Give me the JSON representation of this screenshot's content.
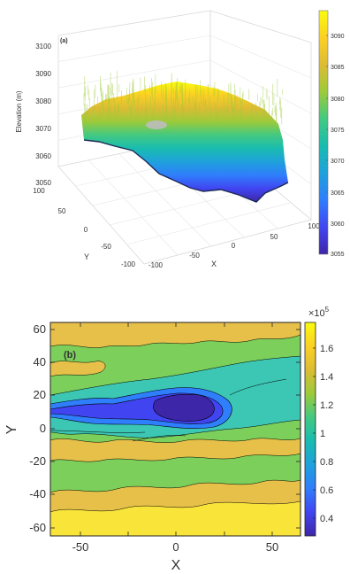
{
  "colors": {
    "parula": [
      "#3e26a8",
      "#4145f1",
      "#2f7efc",
      "#1fa1dc",
      "#19bcb0",
      "#43c981",
      "#9cca3a",
      "#dcbc34",
      "#fbd024",
      "#f9fb0e"
    ]
  },
  "chart_data": [
    {
      "panel": "(a)",
      "type": "surface3d",
      "zlabel": "Elevation (m)",
      "xlabel": "X",
      "ylabel": "Y",
      "x_ticks": [
        "-100",
        "-50",
        "0",
        "50",
        "100"
      ],
      "y_ticks": [
        "-100",
        "-50",
        "0",
        "50",
        "100"
      ],
      "z_ticks": [
        "3050",
        "3060",
        "3070",
        "3080",
        "3090",
        "3100"
      ],
      "zlim": [
        3050,
        3100
      ],
      "colorbar": {
        "ticks": [
          "3055",
          "3060",
          "3065",
          "3070",
          "3075",
          "3080",
          "3085",
          "3090"
        ],
        "range": [
          3053,
          3093
        ]
      },
      "grid": true
    },
    {
      "panel": "(b)",
      "type": "contour",
      "xlabel": "X",
      "ylabel": "Y",
      "x_ticks": [
        "-50",
        "0",
        "50"
      ],
      "y_ticks": [
        "60",
        "40",
        "20",
        "0",
        "-20",
        "-40",
        "-60"
      ],
      "xlim": [
        -65,
        65
      ],
      "ylim": [
        -65,
        65
      ],
      "colorbar": {
        "multiplier": "×10",
        "exponent": "5",
        "ticks": [
          "1.6",
          "1.4",
          "1.2",
          "1",
          "0.8",
          "0.6",
          "0.4"
        ],
        "range": [
          0.25,
          1.75
        ]
      }
    }
  ]
}
